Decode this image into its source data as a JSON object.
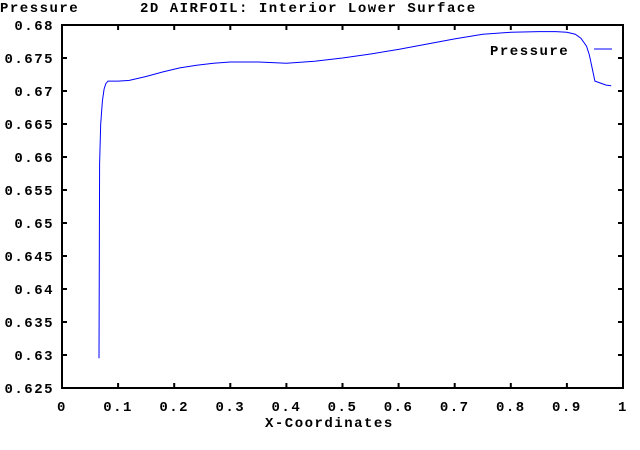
{
  "chart_data": {
    "type": "line",
    "title": "2D AIRFOIL: Interior Lower Surface",
    "ylabel": "Pressure",
    "xlabel": "X-Coordinates",
    "xlim": [
      0,
      1
    ],
    "ylim": [
      0.625,
      0.68
    ],
    "xticks": [
      "0",
      "0.1",
      "0.2",
      "0.3",
      "0.4",
      "0.5",
      "0.6",
      "0.7",
      "0.8",
      "0.9",
      "1"
    ],
    "xtick_values": [
      0,
      0.1,
      0.2,
      0.3,
      0.4,
      0.5,
      0.6,
      0.7,
      0.8,
      0.9,
      1
    ],
    "yticks": [
      "0.625",
      "0.63",
      "0.635",
      "0.64",
      "0.645",
      "0.65",
      "0.655",
      "0.66",
      "0.665",
      "0.67",
      "0.675",
      "0.68"
    ],
    "ytick_values": [
      0.625,
      0.63,
      0.635,
      0.64,
      0.645,
      0.65,
      0.655,
      0.66,
      0.665,
      0.67,
      0.675,
      0.68
    ],
    "grid": false,
    "legend_position": "top-right",
    "series": [
      {
        "name": "Pressure",
        "color": "#0000ff",
        "x": [
          0.066,
          0.067,
          0.069,
          0.072,
          0.075,
          0.078,
          0.082,
          0.1,
          0.12,
          0.15,
          0.18,
          0.21,
          0.24,
          0.27,
          0.3,
          0.35,
          0.4,
          0.45,
          0.5,
          0.55,
          0.6,
          0.65,
          0.7,
          0.75,
          0.8,
          0.85,
          0.88,
          0.9,
          0.915,
          0.925,
          0.935,
          0.94,
          0.945,
          0.95,
          0.96,
          0.97,
          0.979
        ],
        "y": [
          0.6295,
          0.659,
          0.665,
          0.6685,
          0.6703,
          0.6711,
          0.6715,
          0.6715,
          0.6716,
          0.6722,
          0.6729,
          0.6735,
          0.6739,
          0.6742,
          0.6744,
          0.6744,
          0.6742,
          0.6745,
          0.675,
          0.6756,
          0.6763,
          0.6771,
          0.6779,
          0.6786,
          0.6789,
          0.679,
          0.679,
          0.6789,
          0.6786,
          0.678,
          0.6768,
          0.6755,
          0.6735,
          0.6715,
          0.6712,
          0.6709,
          0.6708
        ]
      }
    ]
  }
}
